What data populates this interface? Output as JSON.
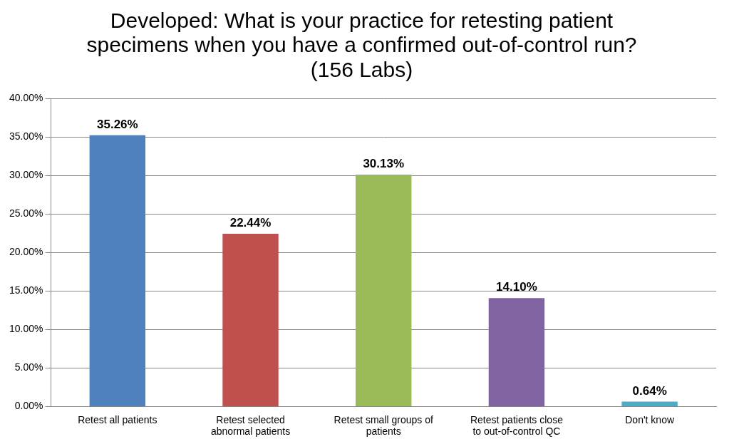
{
  "chart_data": {
    "type": "bar",
    "title": "Developed: What is your practice for retesting patient specimens when you have a confirmed out-of-control run? (156 Labs)",
    "categories": [
      "Retest all patients",
      "Retest selected abnormal patients",
      "Retest small groups of patients",
      "Retest patients close to out-of-control QC",
      "Don't know"
    ],
    "values": [
      35.26,
      22.44,
      30.13,
      14.1,
      0.64
    ],
    "value_labels": [
      "35.26%",
      "22.44%",
      "30.13%",
      "14.10%",
      "0.64%"
    ],
    "colors": [
      "#4f81bd",
      "#c0504d",
      "#9bbb59",
      "#8064a2",
      "#4bacc6"
    ],
    "ylim": [
      0,
      40
    ],
    "yticks": [
      {
        "value": 0,
        "label": "0.00%"
      },
      {
        "value": 5,
        "label": "5.00%"
      },
      {
        "value": 10,
        "label": "10.00%"
      },
      {
        "value": 15,
        "label": "15.00%"
      },
      {
        "value": 20,
        "label": "20.00%"
      },
      {
        "value": 25,
        "label": "25.00%"
      },
      {
        "value": 30,
        "label": "30.00%"
      },
      {
        "value": 35,
        "label": "35.00%"
      },
      {
        "value": 40,
        "label": "40.00%"
      }
    ],
    "grid": true,
    "data_labels": true
  }
}
